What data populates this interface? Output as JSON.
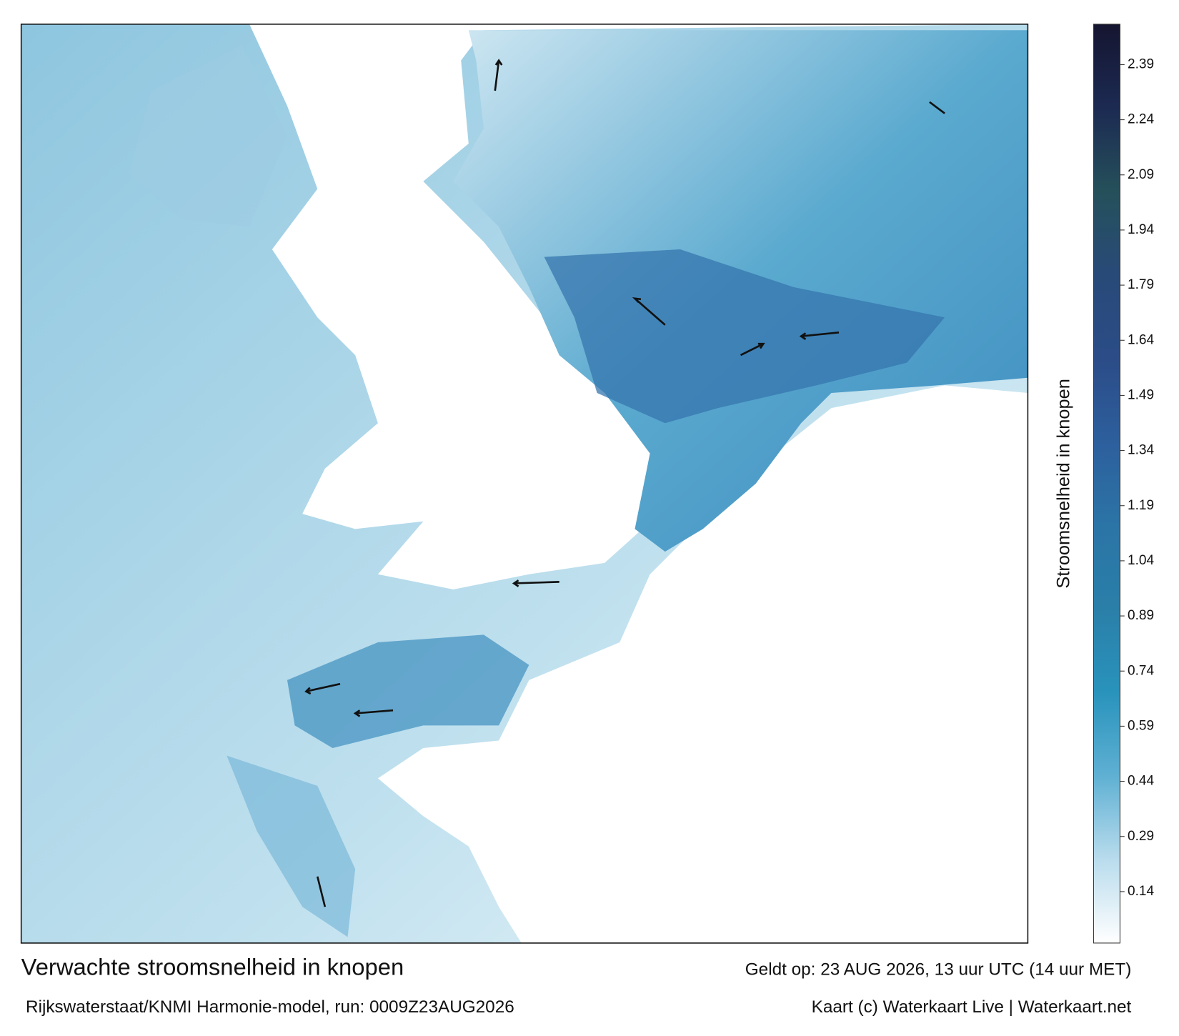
{
  "header": {
    "title": "Verwachte stroomsnelheid in knopen",
    "subtitle": "Rijkswaterstaat/KNMI Harmonie-model, run: 0009Z23AUG2026",
    "valid_time": "Geldt op: 23 AUG 2026, 13 uur UTC (14 uur MET)",
    "credit": "Kaart (c) Waterkaart Live | Waterkaart.net"
  },
  "colorbar": {
    "label": "Stroomsnelheid in knopen",
    "clim": [
      0,
      2.5
    ],
    "ticks": [
      0.14,
      0.29,
      0.44,
      0.59,
      0.74,
      0.89,
      1.04,
      1.19,
      1.34,
      1.49,
      1.64,
      1.79,
      1.94,
      2.09,
      2.24,
      2.39
    ],
    "colors": [
      "#ffffff",
      "#b9dced",
      "#5fb0d3",
      "#2993bc",
      "#2a7fa8",
      "#2b74a6",
      "#2d5f9d",
      "#2b4c87",
      "#284a78",
      "#25505a",
      "#1c2a52",
      "#151530"
    ]
  }
}
